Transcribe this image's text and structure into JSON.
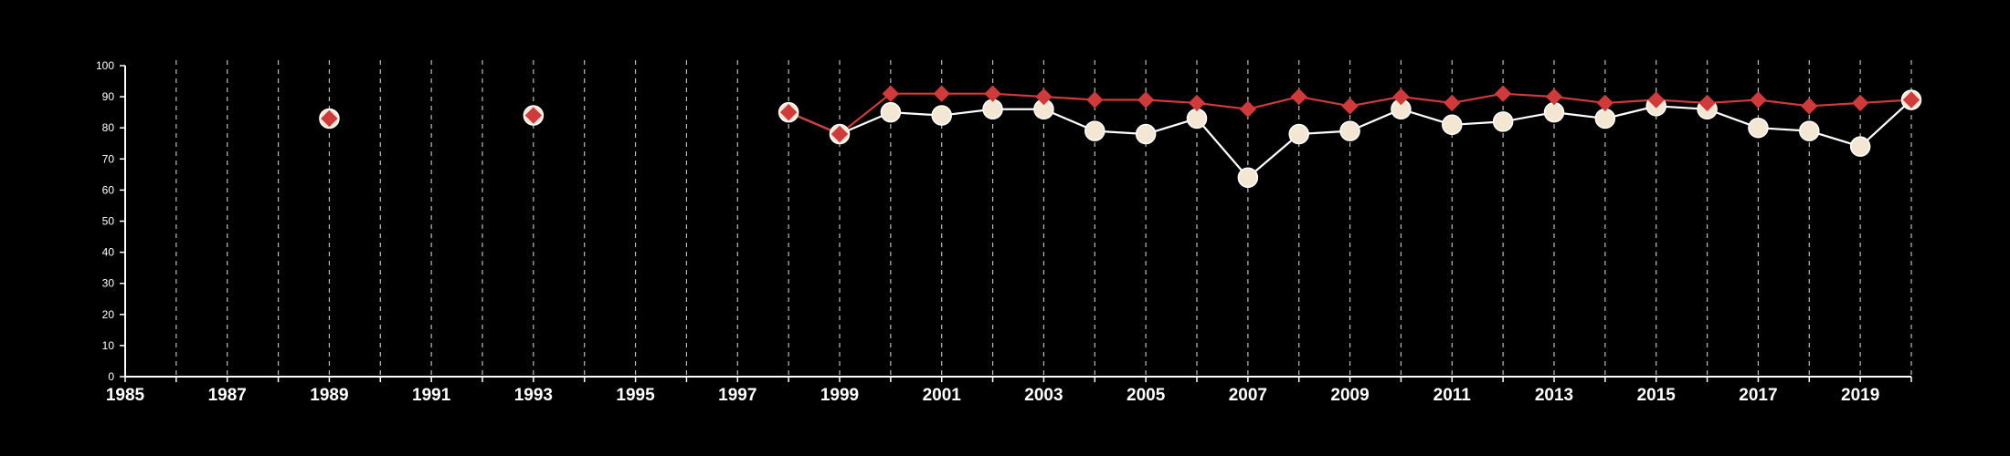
{
  "colors": {
    "background": "#000000",
    "axis": "#ffffff",
    "grid": "#bdbdbd",
    "series_a": "#ffffff",
    "series_a_marker": "#f3e6d2",
    "series_b": "#d03a3a"
  },
  "chart_data": {
    "type": "line",
    "title": "",
    "xlabel": "",
    "ylabel": "",
    "xlim": [
      1985,
      2020
    ],
    "ylim": [
      0,
      100
    ],
    "x_ticks": [
      "1985",
      "1987",
      "1989",
      "1991",
      "1993",
      "1995",
      "1997",
      "1999",
      "2001",
      "2003",
      "2005",
      "2007",
      "2009",
      "2011",
      "2013",
      "2015",
      "2017",
      "2019"
    ],
    "y_ticks": [
      "0",
      "10",
      "20",
      "30",
      "40",
      "50",
      "60",
      "70",
      "80",
      "90",
      "100"
    ],
    "grid": "vertical dashed lines at each year",
    "legend": "none",
    "series": [
      {
        "marker": "circle",
        "points": [
          [
            1989,
            83
          ],
          [
            1993,
            84
          ],
          [
            1998,
            85
          ],
          [
            1999,
            78
          ],
          [
            2000,
            85
          ],
          [
            2001,
            84
          ],
          [
            2002,
            86
          ],
          [
            2003,
            86
          ],
          [
            2004,
            79
          ],
          [
            2005,
            78
          ],
          [
            2006,
            83
          ],
          [
            2007,
            64
          ],
          [
            2008,
            78
          ],
          [
            2009,
            79
          ],
          [
            2010,
            86
          ],
          [
            2011,
            81
          ],
          [
            2012,
            82
          ],
          [
            2013,
            85
          ],
          [
            2014,
            83
          ],
          [
            2015,
            87
          ],
          [
            2016,
            86
          ],
          [
            2017,
            80
          ],
          [
            2018,
            79
          ],
          [
            2019,
            74
          ],
          [
            2020,
            89
          ]
        ]
      },
      {
        "marker": "diamond",
        "points": [
          [
            1989,
            83
          ],
          [
            1993,
            84
          ],
          [
            1998,
            85
          ],
          [
            1999,
            78
          ],
          [
            2000,
            91
          ],
          [
            2001,
            91
          ],
          [
            2002,
            91
          ],
          [
            2003,
            90
          ],
          [
            2004,
            89
          ],
          [
            2005,
            89
          ],
          [
            2006,
            88
          ],
          [
            2007,
            86
          ],
          [
            2008,
            90
          ],
          [
            2009,
            87
          ],
          [
            2010,
            90
          ],
          [
            2011,
            88
          ],
          [
            2012,
            91
          ],
          [
            2013,
            90
          ],
          [
            2014,
            88
          ],
          [
            2015,
            89
          ],
          [
            2016,
            88
          ],
          [
            2017,
            89
          ],
          [
            2018,
            87
          ],
          [
            2019,
            88
          ],
          [
            2020,
            89
          ]
        ]
      }
    ]
  }
}
